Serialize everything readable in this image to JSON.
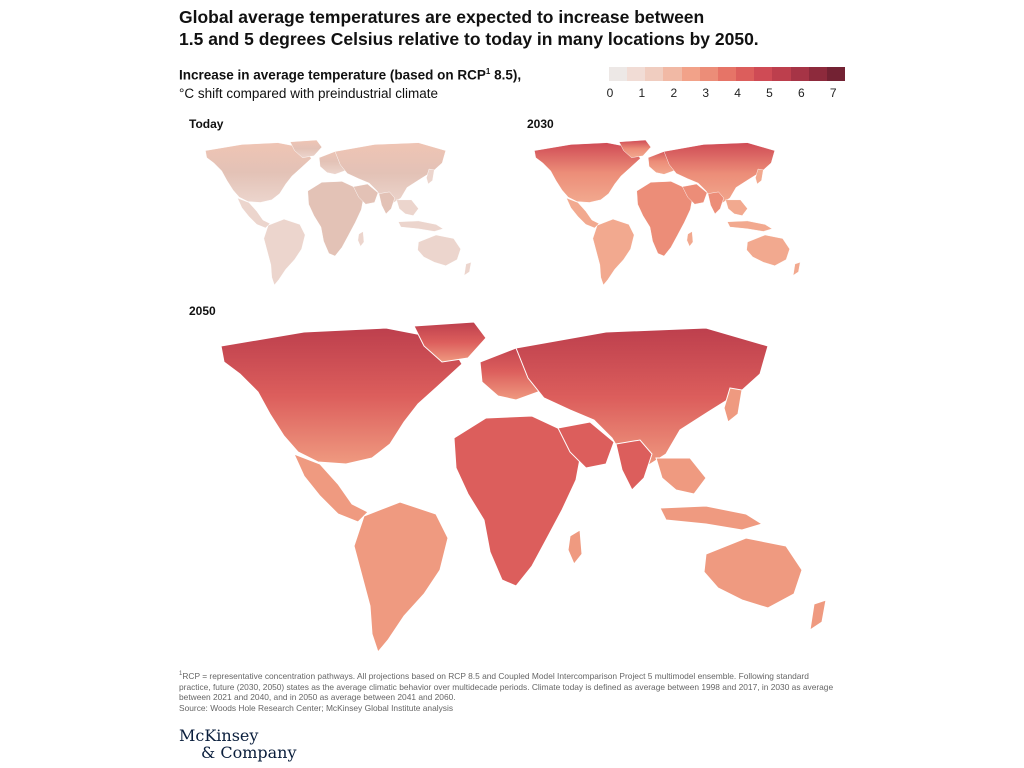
{
  "title_line1": "Global average temperatures are expected to increase between",
  "title_line2": "1.5 and 5 degrees Celsius relative to today in many locations by 2050.",
  "subtitle_bold_prefix": "Increase in average temperature (based on RCP",
  "subtitle_sup": "1",
  "subtitle_bold_suffix": " 8.5),",
  "subtitle_line2": "°C shift compared with preindustrial climate",
  "legend": {
    "colors": [
      "#ede8e6",
      "#f1dcd5",
      "#f0cdc0",
      "#f1b9a5",
      "#f2a289",
      "#ec8d78",
      "#e67467",
      "#dc5e5c",
      "#cf4b55",
      "#bd3f4d",
      "#a63446",
      "#8d2a3c",
      "#732233"
    ],
    "ticks": [
      "0",
      "1",
      "2",
      "3",
      "4",
      "5",
      "6",
      "7"
    ]
  },
  "maps": {
    "today": {
      "label": "Today",
      "base": "#ecd5cd",
      "hot": "#e3c2b6",
      "cold_top": "#efc4b4"
    },
    "y2030": {
      "label": "2030",
      "base": "#f2a98f",
      "hot": "#ec8d78",
      "cold_top": "#cf4b55"
    },
    "y2050": {
      "label": "2050",
      "base": "#ef9a80",
      "hot": "#dc5e5c",
      "cold_top": "#bd3f4d"
    }
  },
  "footnote_sup": "1",
  "footnote_text": "RCP = representative concentration pathways. All projections based on RCP 8.5 and Coupled Model Intercomparison Project 5 multimodel ensemble. Following standard practice, future (2030, 2050) states as the average climatic behavior over multidecade periods. Climate today is defined as average between 1998 and 2017, in 2030 as average between 2021 and 2040, and in 2050 as average between 2041 and 2060.",
  "source": "Source: Woods Hole Research Center; McKinsey Global Institute analysis",
  "logo_line1": "McKinsey",
  "logo_line2": "& Company"
}
